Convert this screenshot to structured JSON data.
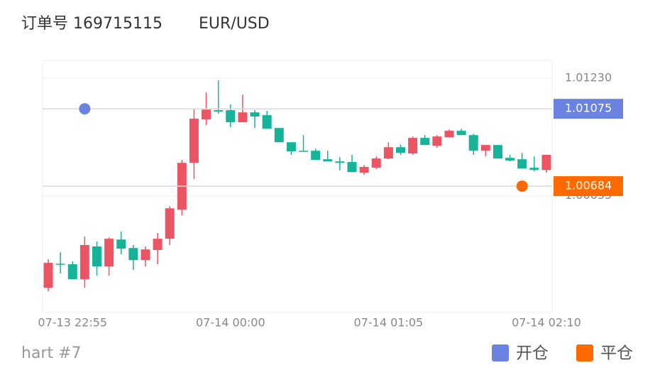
{
  "header": {
    "order": "订单号 169715115",
    "symbol": "EUR/USD"
  },
  "chart_data": {
    "type": "candlestick",
    "categories": [
      null,
      null,
      "07-13 22:55",
      null,
      null,
      null,
      null,
      null,
      null,
      null,
      null,
      null,
      null,
      null,
      null,
      "07-14 00:00",
      null,
      null,
      null,
      null,
      null,
      null,
      null,
      null,
      null,
      null,
      null,
      null,
      "07-14 01:05",
      null,
      null,
      null,
      null,
      null,
      null,
      null,
      null,
      null,
      null,
      null,
      null,
      "07-14 02:10"
    ],
    "ohlc": [
      [
        1.0017,
        1.00314,
        1.00152,
        1.00296
      ],
      [
        1.00292,
        1.0035,
        1.00242,
        1.00289
      ],
      [
        1.00289,
        1.00303,
        1.00213,
        1.00213
      ],
      [
        1.00213,
        1.00429,
        1.0017,
        1.00386
      ],
      [
        1.00379,
        1.00404,
        1.00231,
        1.00278
      ],
      [
        1.00278,
        1.00425,
        1.00231,
        1.00418
      ],
      [
        1.00414,
        1.00454,
        1.00339,
        1.00368
      ],
      [
        1.00371,
        1.00386,
        1.0026,
        1.0031
      ],
      [
        1.0031,
        1.00379,
        1.00278,
        1.00364
      ],
      [
        1.00361,
        1.00447,
        1.00289,
        1.00418
      ],
      [
        1.00418,
        1.00583,
        1.00386,
        1.00572
      ],
      [
        1.00565,
        1.00817,
        1.00536,
        1.00802
      ],
      [
        1.00802,
        1.01075,
        1.0072,
        1.01025
      ],
      [
        1.01021,
        1.01158,
        1.00992,
        1.01071
      ],
      [
        1.01068,
        1.01219,
        1.0105,
        1.01061
      ],
      [
        1.01068,
        1.01097,
        1.00982,
        1.01007
      ],
      [
        1.01007,
        1.01147,
        1.01007,
        1.01057
      ],
      [
        1.01057,
        1.01068,
        1.00978,
        1.01036
      ],
      [
        1.01043,
        1.01064,
        1.00974,
        1.00974
      ],
      [
        1.00978,
        1.00978,
        1.00906,
        1.00906
      ],
      [
        1.00906,
        1.00906,
        1.00842,
        1.0086
      ],
      [
        1.00863,
        1.00942,
        1.0086,
        1.0086
      ],
      [
        1.00863,
        1.00874,
        1.00817,
        1.00817
      ],
      [
        1.0082,
        1.00863,
        1.00809,
        1.00809
      ],
      [
        1.00809,
        1.00831,
        1.00763,
        1.00802
      ],
      [
        1.00806,
        1.00842,
        1.00755,
        1.00755
      ],
      [
        1.00752,
        1.00791,
        1.00741,
        1.00781
      ],
      [
        1.00777,
        1.00834,
        1.0077,
        1.00824
      ],
      [
        1.00824,
        1.00906,
        1.0082,
        1.00881
      ],
      [
        1.00881,
        1.00895,
        1.00842,
        1.00852
      ],
      [
        1.00849,
        1.00935,
        1.00842,
        1.00928
      ],
      [
        1.00928,
        1.00942,
        1.00892,
        1.00892
      ],
      [
        1.00888,
        1.00942,
        1.00878,
        1.00935
      ],
      [
        1.00931,
        1.00971,
        1.00931,
        1.00964
      ],
      [
        1.00964,
        1.00974,
        1.00942,
        1.00942
      ],
      [
        1.00942,
        1.00949,
        1.00842,
        1.00863
      ],
      [
        1.00863,
        1.00892,
        1.00834,
        1.00892
      ],
      [
        1.00892,
        1.00892,
        1.00824,
        1.00824
      ],
      [
        1.00827,
        1.00842,
        1.00809,
        1.00813
      ],
      [
        1.0082,
        1.00852,
        1.00773,
        1.00773
      ],
      [
        1.00777,
        1.00834,
        1.00759,
        1.00766
      ],
      [
        1.00766,
        1.00842,
        1.00752,
        1.00842
      ]
    ],
    "up_color": "#eb5463",
    "down_color": "#17b398",
    "ylim": [
      1.00045,
      1.0132
    ],
    "yticks": [
      {
        "value": 1.0123,
        "label": "1.01230"
      },
      1.00635
    ],
    "grid": true,
    "markers": [
      {
        "name": "开仓",
        "color": "#6b83e0",
        "category_index": 3,
        "value": 1.01075
      },
      {
        "name": "平仓",
        "color": "#ff6a00",
        "category_index": 39,
        "value": 1.00684
      }
    ],
    "legend": "bottom-right"
  },
  "footer": "hart #7"
}
